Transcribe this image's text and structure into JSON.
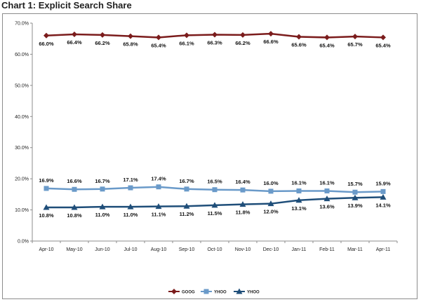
{
  "chart_data": {
    "type": "line",
    "title": "Chart 1: Explicit Search Share",
    "categories": [
      "Apr-10",
      "May-10",
      "Jun-10",
      "Jul-10",
      "Aug-10",
      "Sep-10",
      "Oct-10",
      "Nov-10",
      "Dec-10",
      "Jan-11",
      "Feb-11",
      "Mar-11",
      "Apr-11"
    ],
    "ylim": [
      0,
      70
    ],
    "yticks": [
      "0.0%",
      "10.0%",
      "20.0%",
      "30.0%",
      "40.0%",
      "50.0%",
      "60.0%",
      "70.0%"
    ],
    "grid": false,
    "legend_position": "bottom",
    "series": [
      {
        "name": "GOOG",
        "color": "#7b1c1c",
        "marker": "diamond",
        "label_position": "below",
        "values": [
          66.0,
          66.4,
          66.2,
          65.8,
          65.4,
          66.1,
          66.3,
          66.2,
          66.6,
          65.6,
          65.4,
          65.7,
          65.4
        ],
        "labels": [
          "66.0%",
          "66.4%",
          "66.2%",
          "65.8%",
          "65.4%",
          "66.1%",
          "66.3%",
          "66.2%",
          "66.6%",
          "65.6%",
          "65.4%",
          "65.7%",
          "65.4%"
        ]
      },
      {
        "name": "YHOO",
        "color": "#6a9ac9",
        "marker": "square",
        "label_position": "above",
        "values": [
          16.9,
          16.6,
          16.7,
          17.1,
          17.4,
          16.7,
          16.5,
          16.4,
          16.0,
          16.1,
          16.1,
          15.7,
          15.9
        ],
        "labels": [
          "16.9%",
          "16.6%",
          "16.7%",
          "17.1%",
          "17.4%",
          "16.7%",
          "16.5%",
          "16.4%",
          "16.0%",
          "16.1%",
          "16.1%",
          "15.7%",
          "15.9%"
        ]
      },
      {
        "name": "YHOO",
        "color": "#1f4e79",
        "marker": "triangle",
        "label_position": "below",
        "values": [
          10.8,
          10.8,
          11.0,
          11.0,
          11.1,
          11.2,
          11.5,
          11.8,
          12.0,
          13.1,
          13.6,
          13.9,
          14.1
        ],
        "labels": [
          "10.8%",
          "10.8%",
          "11.0%",
          "11.0%",
          "11.1%",
          "11.2%",
          "11.5%",
          "11.8%",
          "12.0%",
          "13.1%",
          "13.6%",
          "13.9%",
          "14.1%"
        ]
      }
    ]
  }
}
